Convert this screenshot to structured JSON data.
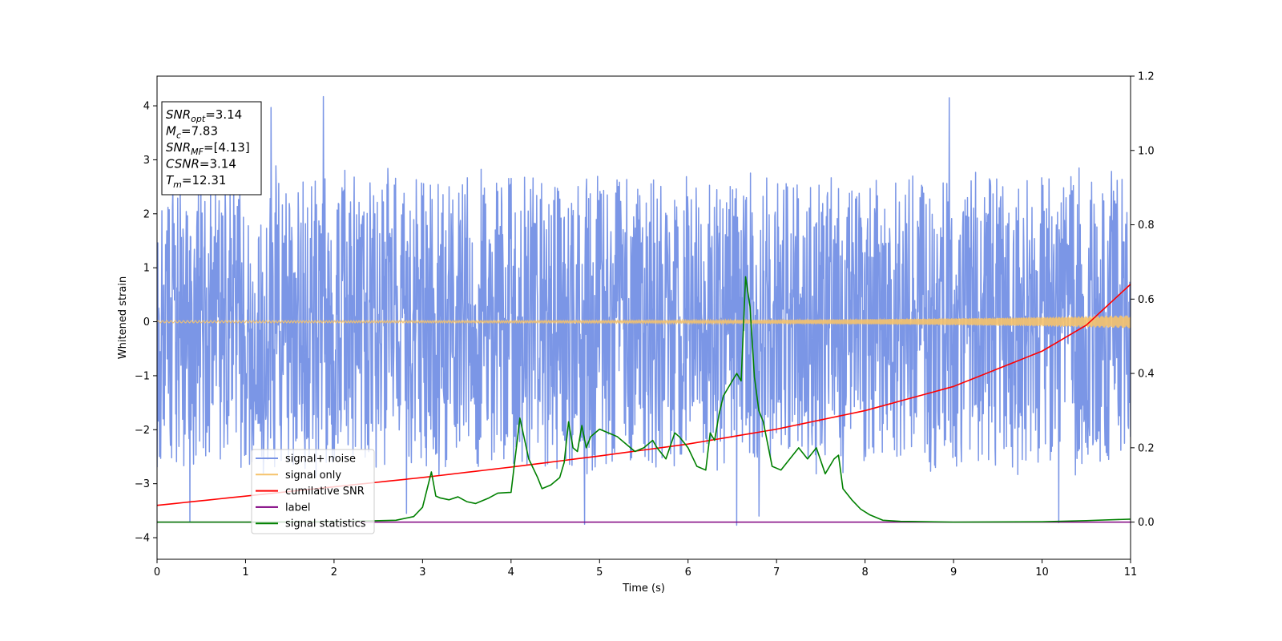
{
  "chart_data": {
    "type": "line",
    "title": "",
    "xlabel": "Time (s)",
    "ylabel": "Whitened strain",
    "y2label": "",
    "xlim": [
      0,
      11
    ],
    "ylim": [
      -4.4,
      4.55
    ],
    "y2lim": [
      -0.1,
      1.2
    ],
    "xticks": [
      0,
      1,
      2,
      3,
      4,
      5,
      6,
      7,
      8,
      9,
      10,
      11
    ],
    "yticks": [
      -4,
      -3,
      -2,
      -1,
      0,
      1,
      2,
      3,
      4
    ],
    "y2ticks": [
      0.0,
      0.2,
      0.4,
      0.6,
      0.8,
      1.0,
      1.2
    ],
    "ytick_labels": [
      "−4",
      "−3",
      "−2",
      "−1",
      "0",
      "1",
      "2",
      "3",
      "4"
    ],
    "y2tick_labels": [
      "0.0",
      "0.2",
      "0.4",
      "0.6",
      "0.8",
      "1.0",
      "1.2"
    ],
    "grid": false,
    "legend_position": "lower-left",
    "annotation": {
      "lines": [
        {
          "label": "SNR",
          "sub": "opt",
          "value": "=3.14"
        },
        {
          "label": "M",
          "sub": "c",
          "value": "=7.83"
        },
        {
          "label": "SNR",
          "sub": "MF",
          "value": "=[4.13]"
        },
        {
          "label": "CSNR",
          "sub": "",
          "value": "=3.14"
        },
        {
          "label": "T",
          "sub": "m",
          "value": "=12.31"
        }
      ]
    },
    "series": [
      {
        "name": "signal+ noise",
        "color": "#7b96e6",
        "axis": "left",
        "description_peaks": [
          [
            0.37,
            -3.7
          ],
          [
            1.29,
            3.97
          ],
          [
            1.88,
            4.17
          ],
          [
            2.82,
            -3.55
          ],
          [
            4.83,
            -3.75
          ],
          [
            6.55,
            -3.77
          ],
          [
            6.8,
            -3.6
          ],
          [
            8.95,
            4.15
          ],
          [
            10.19,
            -3.72
          ]
        ],
        "typical_range": [
          -2.4,
          2.4
        ]
      },
      {
        "name": "signal only",
        "color": "#f5c26b",
        "axis": "left",
        "amplitude_start": 0.02,
        "amplitude_end": 0.12
      },
      {
        "name": "cumilative SNR",
        "color": "#ff0000",
        "axis": "right",
        "x": [
          0,
          1,
          2,
          3,
          4,
          5,
          6,
          7,
          8,
          9,
          10,
          10.5,
          11
        ],
        "y": [
          0.045,
          0.07,
          0.095,
          0.12,
          0.148,
          0.178,
          0.21,
          0.25,
          0.3,
          0.365,
          0.46,
          0.53,
          0.64
        ]
      },
      {
        "name": "label",
        "color": "#800080",
        "axis": "right",
        "x": [
          0,
          11
        ],
        "y": [
          0.0,
          0.0
        ]
      },
      {
        "name": "signal statistics",
        "color": "#008000",
        "axis": "right",
        "x": [
          0,
          1,
          2,
          2.7,
          2.9,
          3.0,
          3.1,
          3.15,
          3.2,
          3.3,
          3.4,
          3.5,
          3.6,
          3.75,
          3.85,
          4.0,
          4.1,
          4.2,
          4.3,
          4.35,
          4.45,
          4.55,
          4.6,
          4.65,
          4.7,
          4.75,
          4.8,
          4.85,
          4.9,
          4.95,
          5.0,
          5.1,
          5.2,
          5.3,
          5.4,
          5.5,
          5.6,
          5.65,
          5.75,
          5.85,
          5.9,
          6.0,
          6.1,
          6.2,
          6.25,
          6.3,
          6.35,
          6.4,
          6.45,
          6.55,
          6.6,
          6.65,
          6.7,
          6.75,
          6.8,
          6.85,
          6.95,
          7.05,
          7.15,
          7.25,
          7.35,
          7.45,
          7.55,
          7.65,
          7.7,
          7.75,
          7.85,
          7.95,
          8.05,
          8.2,
          8.4,
          9.0,
          10.0,
          10.5,
          11.0
        ],
        "y": [
          0.0,
          0.0,
          0.001,
          0.005,
          0.015,
          0.04,
          0.135,
          0.07,
          0.065,
          0.06,
          0.068,
          0.055,
          0.05,
          0.065,
          0.078,
          0.08,
          0.28,
          0.17,
          0.12,
          0.09,
          0.1,
          0.12,
          0.16,
          0.27,
          0.2,
          0.19,
          0.26,
          0.2,
          0.23,
          0.24,
          0.25,
          0.24,
          0.23,
          0.21,
          0.19,
          0.2,
          0.22,
          0.2,
          0.17,
          0.24,
          0.23,
          0.2,
          0.15,
          0.14,
          0.24,
          0.22,
          0.29,
          0.34,
          0.36,
          0.4,
          0.38,
          0.66,
          0.58,
          0.39,
          0.3,
          0.27,
          0.15,
          0.14,
          0.17,
          0.2,
          0.17,
          0.2,
          0.13,
          0.17,
          0.18,
          0.09,
          0.06,
          0.035,
          0.02,
          0.005,
          0.002,
          0.0,
          0.001,
          0.004,
          0.008
        ]
      }
    ]
  }
}
